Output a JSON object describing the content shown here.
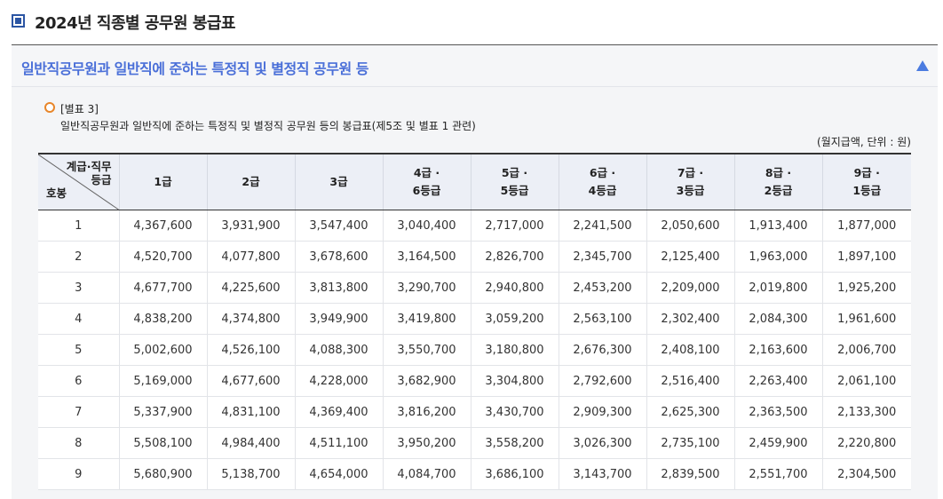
{
  "page": {
    "title": "2024년 직종별 공무원 봉급표"
  },
  "section": {
    "title": "일반직공무원과 일반직에 준하는 특정직 및 별정직 공무원 등",
    "toggle_icon": "triangle-up-icon"
  },
  "annex": {
    "label": "[별표 3]",
    "subtitle": "일반직공무원과 일반직에 준하는 특정직 및 별정직 공무원 등의 봉급표(제5조 및 별표 1 관련)",
    "unit": "(월지급액, 단위 : 원)"
  },
  "table": {
    "corner_top_line1": "계급·직무",
    "corner_top_line2": "등급",
    "corner_bottom": "호봉",
    "columns": [
      {
        "line1": "1급",
        "line2": ""
      },
      {
        "line1": "2급",
        "line2": ""
      },
      {
        "line1": "3급",
        "line2": ""
      },
      {
        "line1": "4급 ·",
        "line2": "6등급"
      },
      {
        "line1": "5급 ·",
        "line2": "5등급"
      },
      {
        "line1": "6급 ·",
        "line2": "4등급"
      },
      {
        "line1": "7급 ·",
        "line2": "3등급"
      },
      {
        "line1": "8급 ·",
        "line2": "2등급"
      },
      {
        "line1": "9급 ·",
        "line2": "1등급"
      }
    ],
    "rows": [
      {
        "step": "1",
        "values": [
          "4,367,600",
          "3,931,900",
          "3,547,400",
          "3,040,400",
          "2,717,000",
          "2,241,500",
          "2,050,600",
          "1,913,400",
          "1,877,000"
        ]
      },
      {
        "step": "2",
        "values": [
          "4,520,700",
          "4,077,800",
          "3,678,600",
          "3,164,500",
          "2,826,700",
          "2,345,700",
          "2,125,400",
          "1,963,000",
          "1,897,100"
        ]
      },
      {
        "step": "3",
        "values": [
          "4,677,700",
          "4,225,600",
          "3,813,800",
          "3,290,700",
          "2,940,800",
          "2,453,200",
          "2,209,000",
          "2,019,800",
          "1,925,200"
        ]
      },
      {
        "step": "4",
        "values": [
          "4,838,200",
          "4,374,800",
          "3,949,900",
          "3,419,800",
          "3,059,200",
          "2,563,100",
          "2,302,400",
          "2,084,300",
          "1,961,600"
        ]
      },
      {
        "step": "5",
        "values": [
          "5,002,600",
          "4,526,100",
          "4,088,300",
          "3,550,700",
          "3,180,800",
          "2,676,300",
          "2,408,100",
          "2,163,600",
          "2,006,700"
        ]
      },
      {
        "step": "6",
        "values": [
          "5,169,000",
          "4,677,600",
          "4,228,000",
          "3,682,900",
          "3,304,800",
          "2,792,600",
          "2,516,400",
          "2,263,400",
          "2,061,100"
        ]
      },
      {
        "step": "7",
        "values": [
          "5,337,900",
          "4,831,100",
          "4,369,400",
          "3,816,200",
          "3,430,700",
          "2,909,300",
          "2,625,300",
          "2,363,500",
          "2,133,300"
        ]
      },
      {
        "step": "8",
        "values": [
          "5,508,100",
          "4,984,400",
          "4,511,100",
          "3,950,200",
          "3,558,200",
          "3,026,300",
          "2,735,100",
          "2,459,900",
          "2,220,800"
        ]
      },
      {
        "step": "9",
        "values": [
          "5,680,900",
          "5,138,700",
          "4,654,000",
          "4,084,700",
          "3,686,100",
          "3,143,700",
          "2,839,500",
          "2,551,700",
          "2,304,500"
        ]
      }
    ]
  }
}
